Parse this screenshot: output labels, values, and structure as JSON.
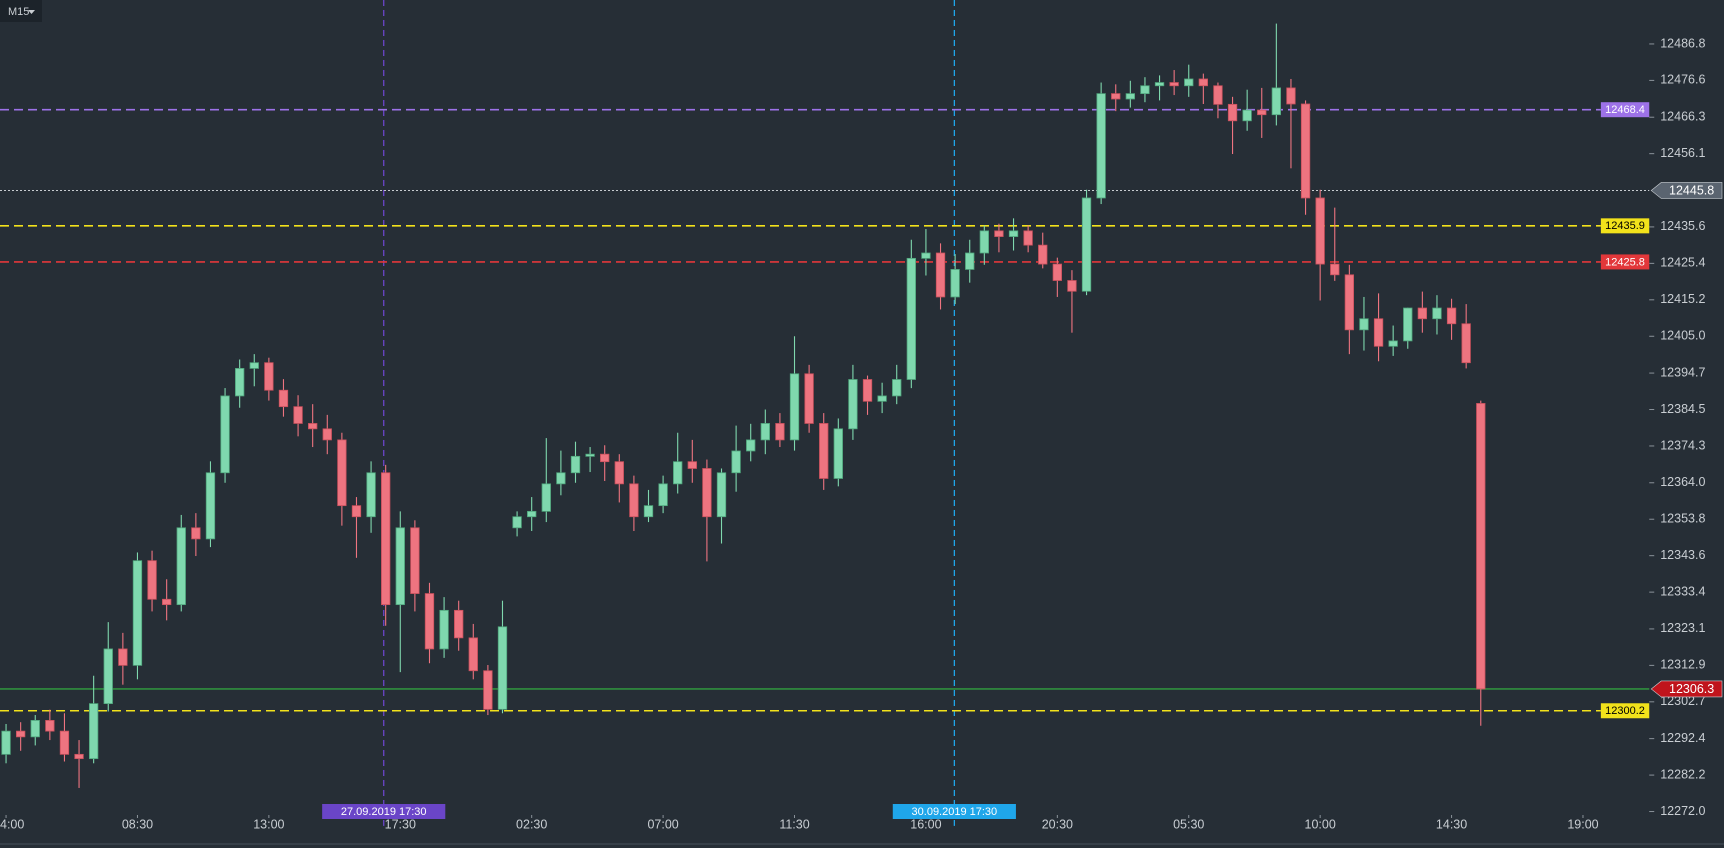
{
  "chart_data": {
    "type": "candlestick",
    "timeframe": "M15",
    "categories": [
      "4:00",
      null,
      null,
      null,
      null,
      null,
      null,
      null,
      null,
      "08:30",
      null,
      null,
      null,
      null,
      null,
      null,
      null,
      null,
      "13:00",
      null,
      null,
      null,
      null,
      null,
      null,
      null,
      null,
      "17:30",
      null,
      null,
      null,
      null,
      null,
      null,
      null,
      null,
      "02:30",
      null,
      null,
      null,
      null,
      null,
      null,
      null,
      null,
      "07:00",
      null,
      null,
      null,
      null,
      null,
      null,
      null,
      null,
      "11:30",
      null,
      null,
      null,
      null,
      null,
      null,
      null,
      null,
      "16:00",
      null,
      null,
      null,
      null,
      null,
      null,
      null,
      null,
      "20:30",
      null,
      null,
      null,
      null,
      null,
      null,
      null,
      null,
      "05:30",
      null,
      null,
      null,
      null,
      null,
      null,
      null,
      null,
      "10:00",
      null,
      null,
      null,
      null,
      null,
      null,
      null,
      null,
      "14:30",
      null,
      null,
      null,
      null,
      null,
      null,
      null,
      null,
      "19:00"
    ],
    "candles": [
      [
        12288.0,
        12296.5,
        12285.5,
        12294.5
      ],
      [
        12294.5,
        12297.0,
        12289.0,
        12292.9
      ],
      [
        12292.9,
        12299.0,
        12290.5,
        12297.5
      ],
      [
        12297.5,
        12300.5,
        12292.0,
        12294.5
      ],
      [
        12294.5,
        12299.5,
        12286.0,
        12288.0
      ],
      [
        12288.0,
        12292.0,
        12278.6,
        12286.8
      ],
      [
        12286.8,
        12310.0,
        12285.5,
        12302.2
      ],
      [
        12302.2,
        12325.0,
        12300.0,
        12317.5
      ],
      [
        12317.5,
        12322.0,
        12307.5,
        12312.9
      ],
      [
        12312.9,
        12344.5,
        12309.0,
        12342.2
      ],
      [
        12342.2,
        12345.0,
        12328.0,
        12331.4
      ],
      [
        12331.4,
        12337.0,
        12325.5,
        12329.9
      ],
      [
        12329.9,
        12355.0,
        12328.0,
        12351.4
      ],
      [
        12351.4,
        12355.5,
        12343.5,
        12348.3
      ],
      [
        12348.3,
        12370.0,
        12346.0,
        12366.8
      ],
      [
        12366.8,
        12390.5,
        12364.0,
        12388.3
      ],
      [
        12388.3,
        12398.5,
        12385.0,
        12396.0
      ],
      [
        12396.0,
        12400.0,
        12391.0,
        12397.6
      ],
      [
        12397.6,
        12399.0,
        12387.0,
        12389.9
      ],
      [
        12389.9,
        12393.0,
        12382.5,
        12385.3
      ],
      [
        12385.3,
        12388.5,
        12377.0,
        12380.6
      ],
      [
        12380.6,
        12386.0,
        12374.0,
        12379.1
      ],
      [
        12379.1,
        12383.0,
        12372.0,
        12376.0
      ],
      [
        12376.0,
        12378.0,
        12352.0,
        12357.6
      ],
      [
        12357.6,
        12360.0,
        12343.0,
        12354.5
      ],
      [
        12354.5,
        12370.0,
        12350.0,
        12366.8
      ],
      [
        12366.8,
        12369.0,
        12324.0,
        12329.9
      ],
      [
        12329.9,
        12356.0,
        12311.0,
        12351.4
      ],
      [
        12351.4,
        12353.5,
        12328.0,
        12333.0
      ],
      [
        12333.0,
        12336.0,
        12313.5,
        12317.5
      ],
      [
        12317.5,
        12332.0,
        12315.0,
        12328.3
      ],
      [
        12328.3,
        12331.0,
        12317.0,
        12320.6
      ],
      [
        12320.6,
        12324.5,
        12309.0,
        12311.4
      ],
      [
        12311.4,
        12313.0,
        12299.0,
        12300.6
      ],
      [
        12300.6,
        12331.0,
        12299.5,
        12323.7
      ],
      [
        12351.4,
        12356.0,
        12349.0,
        12354.5
      ],
      [
        12354.5,
        12360.0,
        12350.5,
        12356.0
      ],
      [
        12356.0,
        12376.5,
        12353.0,
        12363.7
      ],
      [
        12363.7,
        12373.0,
        12360.5,
        12366.8
      ],
      [
        12366.8,
        12375.5,
        12364.0,
        12371.4
      ],
      [
        12371.4,
        12374.0,
        12367.0,
        12372.0
      ],
      [
        12372.0,
        12374.5,
        12364.5,
        12369.9
      ],
      [
        12369.9,
        12372.0,
        12358.5,
        12363.7
      ],
      [
        12363.7,
        12366.0,
        12350.5,
        12354.5
      ],
      [
        12354.5,
        12362.0,
        12353.0,
        12357.6
      ],
      [
        12357.6,
        12366.0,
        12355.5,
        12363.7
      ],
      [
        12363.7,
        12378.0,
        12361.0,
        12369.9
      ],
      [
        12369.9,
        12376.0,
        12364.0,
        12368.0
      ],
      [
        12368.0,
        12370.5,
        12342.0,
        12354.5
      ],
      [
        12354.5,
        12368.0,
        12347.0,
        12366.8
      ],
      [
        12366.8,
        12380.0,
        12361.5,
        12372.9
      ],
      [
        12372.9,
        12380.5,
        12370.0,
        12376.0
      ],
      [
        12376.0,
        12384.5,
        12372.0,
        12380.6
      ],
      [
        12380.6,
        12383.5,
        12374.0,
        12376.0
      ],
      [
        12376.0,
        12405.0,
        12373.0,
        12394.5
      ],
      [
        12394.5,
        12397.0,
        12378.0,
        12380.6
      ],
      [
        12380.6,
        12383.5,
        12362.0,
        12365.2
      ],
      [
        12365.2,
        12382.0,
        12363.0,
        12379.1
      ],
      [
        12379.1,
        12397.0,
        12376.0,
        12392.9
      ],
      [
        12392.9,
        12394.0,
        12383.0,
        12386.8
      ],
      [
        12386.8,
        12392.0,
        12383.5,
        12388.3
      ],
      [
        12388.3,
        12397.0,
        12386.0,
        12392.9
      ],
      [
        12392.9,
        12432.0,
        12390.5,
        12426.8
      ],
      [
        12426.8,
        12435.0,
        12422.0,
        12428.3
      ],
      [
        12428.3,
        12431.0,
        12412.5,
        12416.0
      ],
      [
        12416.0,
        12428.0,
        12414.0,
        12423.7
      ],
      [
        12423.7,
        12432.0,
        12420.0,
        12428.3
      ],
      [
        12428.3,
        12436.0,
        12425.0,
        12434.5
      ],
      [
        12434.5,
        12436.5,
        12428.5,
        12432.9
      ],
      [
        12432.9,
        12438.0,
        12429.0,
        12434.5
      ],
      [
        12434.5,
        12436.0,
        12428.5,
        12430.5
      ],
      [
        12430.5,
        12434.0,
        12424.0,
        12425.2
      ],
      [
        12425.2,
        12427.0,
        12416.0,
        12420.6
      ],
      [
        12420.6,
        12423.5,
        12406.0,
        12417.6
      ],
      [
        12417.6,
        12446.0,
        12416.5,
        12443.7
      ],
      [
        12443.7,
        12476.0,
        12442.0,
        12472.9
      ],
      [
        12472.9,
        12475.5,
        12468.0,
        12471.4
      ],
      [
        12471.4,
        12476.5,
        12469.0,
        12472.9
      ],
      [
        12472.9,
        12477.5,
        12470.5,
        12475.1
      ],
      [
        12475.1,
        12478.0,
        12471.0,
        12476.0
      ],
      [
        12476.0,
        12479.5,
        12472.5,
        12475.1
      ],
      [
        12475.1,
        12481.0,
        12472.0,
        12477.0
      ],
      [
        12477.0,
        12478.5,
        12470.0,
        12475.1
      ],
      [
        12475.1,
        12476.0,
        12466.0,
        12469.9
      ],
      [
        12469.9,
        12472.0,
        12456.0,
        12465.3
      ],
      [
        12465.3,
        12474.0,
        12462.5,
        12468.3
      ],
      [
        12468.3,
        12474.5,
        12460.5,
        12467.0
      ],
      [
        12467.0,
        12492.5,
        12464.0,
        12474.5
      ],
      [
        12474.5,
        12477.0,
        12452.0,
        12470.0
      ],
      [
        12470.0,
        12471.0,
        12439.0,
        12443.7
      ],
      [
        12443.7,
        12446.0,
        12415.0,
        12425.2
      ],
      [
        12425.2,
        12441.0,
        12420.5,
        12422.2
      ],
      [
        12422.2,
        12425.0,
        12400.0,
        12406.8
      ],
      [
        12406.8,
        12416.0,
        12401.0,
        12409.9
      ],
      [
        12409.9,
        12417.0,
        12398.0,
        12402.2
      ],
      [
        12402.2,
        12408.0,
        12399.5,
        12403.7
      ],
      [
        12403.7,
        12413.0,
        12401.5,
        12412.9
      ],
      [
        12412.9,
        12417.5,
        12406.0,
        12409.9
      ],
      [
        12409.9,
        12416.5,
        12405.5,
        12412.9
      ],
      [
        12412.9,
        12415.5,
        12404.0,
        12408.5
      ],
      [
        12408.5,
        12414.0,
        12396.0,
        12397.6
      ],
      [
        12386.2,
        12387.0,
        12296.0,
        12306.3
      ],
      null,
      null,
      null,
      null,
      null,
      null,
      null
    ],
    "up_color": "#7fd8ae",
    "down_color": "#ee7480",
    "ylim": [
      12270.8,
      12499.1
    ],
    "yticks": [
      12486.8,
      12476.6,
      12466.3,
      12456.1,
      12435.6,
      12425.4,
      12415.2,
      {
        "value": 12405,
        "label": "12405.0"
      },
      12394.7,
      12384.5,
      12374.3,
      {
        "value": 12364,
        "label": "12364.0"
      },
      12353.8,
      12343.6,
      12333.4,
      12323.1,
      12312.9,
      12302.7,
      12292.4,
      12282.2,
      {
        "value": 12272,
        "label": "12272.0"
      }
    ],
    "levels": [
      {
        "value": 12468.4,
        "color": "#9d72e8",
        "text_color": "#ffffff",
        "dash": "dashed",
        "tag": "inside"
      },
      {
        "value": 12445.8,
        "color": "#c8ccd0",
        "text_color": "#ffffff",
        "dash": "dotted",
        "tag": "axis",
        "tag_color": "#5a6470"
      },
      {
        "value": 12435.9,
        "color": "#f2e21b",
        "text_color": "#000000",
        "dash": "dashed",
        "tag": "inside"
      },
      {
        "value": 12425.8,
        "color": "#e2373a",
        "text_color": "#ffffff",
        "dash": "dashed",
        "tag": "inside"
      },
      {
        "value": 12306.3,
        "color": "#2f8f3e",
        "text_color": "#ffffff",
        "dash": "solid",
        "tag": "axis",
        "tag_color": "#c0141c"
      },
      {
        "value": 12300.2,
        "color": "#f2e21b",
        "text_color": "#000000",
        "dash": "dashed",
        "tag": "inside"
      }
    ],
    "vlines": [
      {
        "label": "27.09.2019 17:30",
        "color": "#6a45c8"
      },
      {
        "label": "30.09.2019 17:30",
        "color": "#1fa6ea"
      }
    ]
  }
}
